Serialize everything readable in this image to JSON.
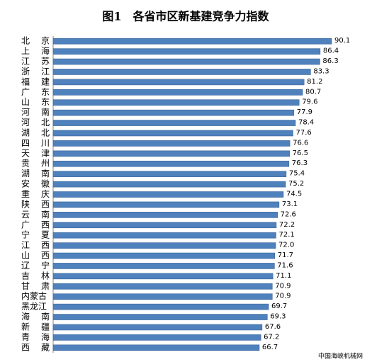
{
  "chart_data": {
    "type": "bar",
    "orientation": "horizontal",
    "title": "图1　各省市区新基建竞争力指数",
    "source": "中国海峡机械网",
    "color": "#4f81bd",
    "categories": [
      "北京",
      "上海",
      "江苏",
      "浙江",
      "福建",
      "广东",
      "山东",
      "河南",
      "河北",
      "湖北",
      "四川",
      "天津",
      "贵州",
      "湖南",
      "安徽",
      "重庆",
      "陕西",
      "云南",
      "广西",
      "宁夏",
      "江西",
      "山西",
      "辽宁",
      "吉林",
      "甘肃",
      "内蒙古",
      "黑龙江",
      "海南",
      "新疆",
      "青海",
      "西藏"
    ],
    "values": [
      90.1,
      86.4,
      86.3,
      83.3,
      81.2,
      80.7,
      79.6,
      77.9,
      78.4,
      77.6,
      76.6,
      76.5,
      76.3,
      75.4,
      75.2,
      74.5,
      73.1,
      72.6,
      72.2,
      72.1,
      72.0,
      71.7,
      71.6,
      71.1,
      70.9,
      70.9,
      69.7,
      69.3,
      67.6,
      67.2,
      66.7
    ],
    "value_labels": [
      "90.1",
      "86.4",
      "86.3",
      "83.3",
      "81.2",
      "80.7",
      "79.6",
      "77.9",
      "78.4",
      "77.6",
      "76.6",
      "76.5",
      "76.3",
      "75.4",
      "75.2",
      "74.5",
      "73.1",
      "72.6",
      "72.2",
      "72.1",
      "72.0",
      "71.7",
      "71.6",
      "71.1",
      "70.9",
      "70.9",
      "69.7",
      "69.3",
      "67.6",
      "67.2",
      "66.7"
    ]
  }
}
